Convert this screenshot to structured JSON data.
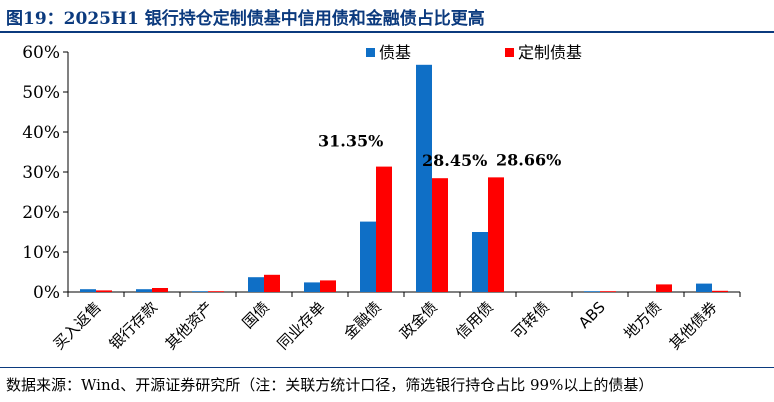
{
  "title": "图19：2025H1 银行持仓定制债基中信用债和金融债占比更高",
  "source": "数据来源：Wind、开源证券研究所（注：关联方统计口径，筛选银行持仓占比 99%以上的债基）",
  "colors": {
    "series1": "#0f6fc6",
    "series2": "#ff0000",
    "axis": "#000000",
    "title": "#0b3a7e"
  },
  "chart_data": {
    "type": "bar",
    "categories": [
      "买入返售",
      "银行存款",
      "其他资产",
      "国债",
      "同业存单",
      "金融债",
      "政金债",
      "信用债",
      "可转债",
      "ABS",
      "地方债",
      "其他债券"
    ],
    "series": [
      {
        "name": "债基",
        "values": [
          0.7,
          0.7,
          0.2,
          3.7,
          2.4,
          17.6,
          56.8,
          15.0,
          0.0,
          0.2,
          0.0,
          2.1
        ]
      },
      {
        "name": "定制债基",
        "values": [
          0.4,
          1.0,
          0.2,
          4.3,
          2.9,
          31.35,
          28.45,
          28.66,
          0.0,
          0.2,
          1.9,
          0.3
        ]
      }
    ],
    "ylim": [
      0,
      60
    ],
    "yticks": [
      "0%",
      "10%",
      "20%",
      "30%",
      "40%",
      "50%",
      "60%"
    ],
    "data_labels": [
      "31.35%",
      "28.45%",
      "28.66%"
    ],
    "legend_position": "top-right",
    "grid": false
  }
}
